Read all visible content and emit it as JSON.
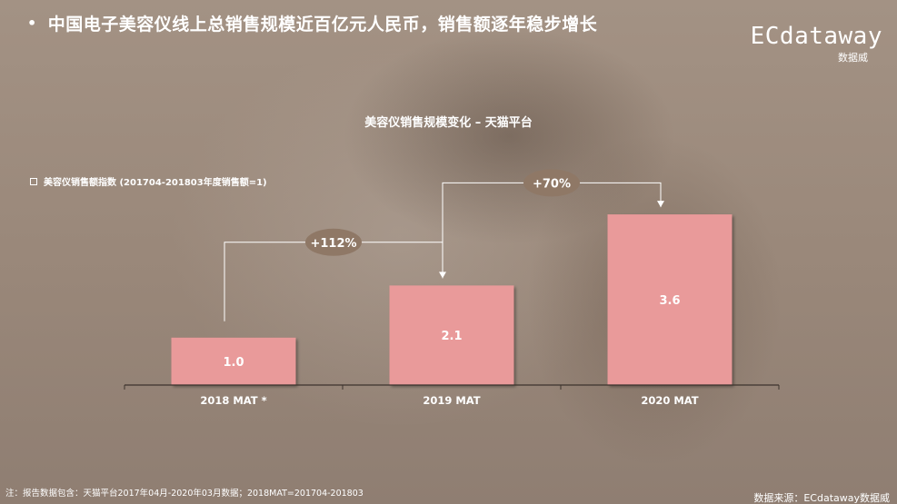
{
  "header": {
    "bullet": "•",
    "headline": "中国电子美容仪线上总销售规模近百亿元人民币，销售额逐年稳步增长"
  },
  "logo": {
    "main": "ECdataway",
    "sub": "数据威"
  },
  "colors": {
    "bar": "#e99a9a",
    "bubble": "#8f7866",
    "text": "#ffffff",
    "axis": "#3c332d"
  },
  "chart_data": {
    "type": "bar",
    "title": "美容仪销售规模变化 – 天猫平台",
    "legend": [
      "美容仪销售额指数 (201704-201803年度销售额=1)"
    ],
    "categories": [
      "2018 MAT *",
      "2019 MAT",
      "2020 MAT"
    ],
    "series": [
      {
        "name": "美容仪销售额指数 (201704-201803年度销售额=1)",
        "values": [
          1.0,
          2.1,
          3.6
        ]
      }
    ],
    "data_labels": [
      "1.0",
      "2.1",
      "3.6"
    ],
    "ylim": [
      0,
      4.2
    ],
    "annotations": [
      {
        "from": "2018 MAT *",
        "to": "2019 MAT",
        "text": "+112%"
      },
      {
        "from": "2019 MAT",
        "to": "2020 MAT",
        "text": "+70%"
      }
    ],
    "grid": false
  },
  "footer": {
    "note": "注：报告数据包含：天猫平台2017年04月-2020年03月数据；2018MAT=201704-201803",
    "source": "数据来源：ECdataway数据威"
  }
}
